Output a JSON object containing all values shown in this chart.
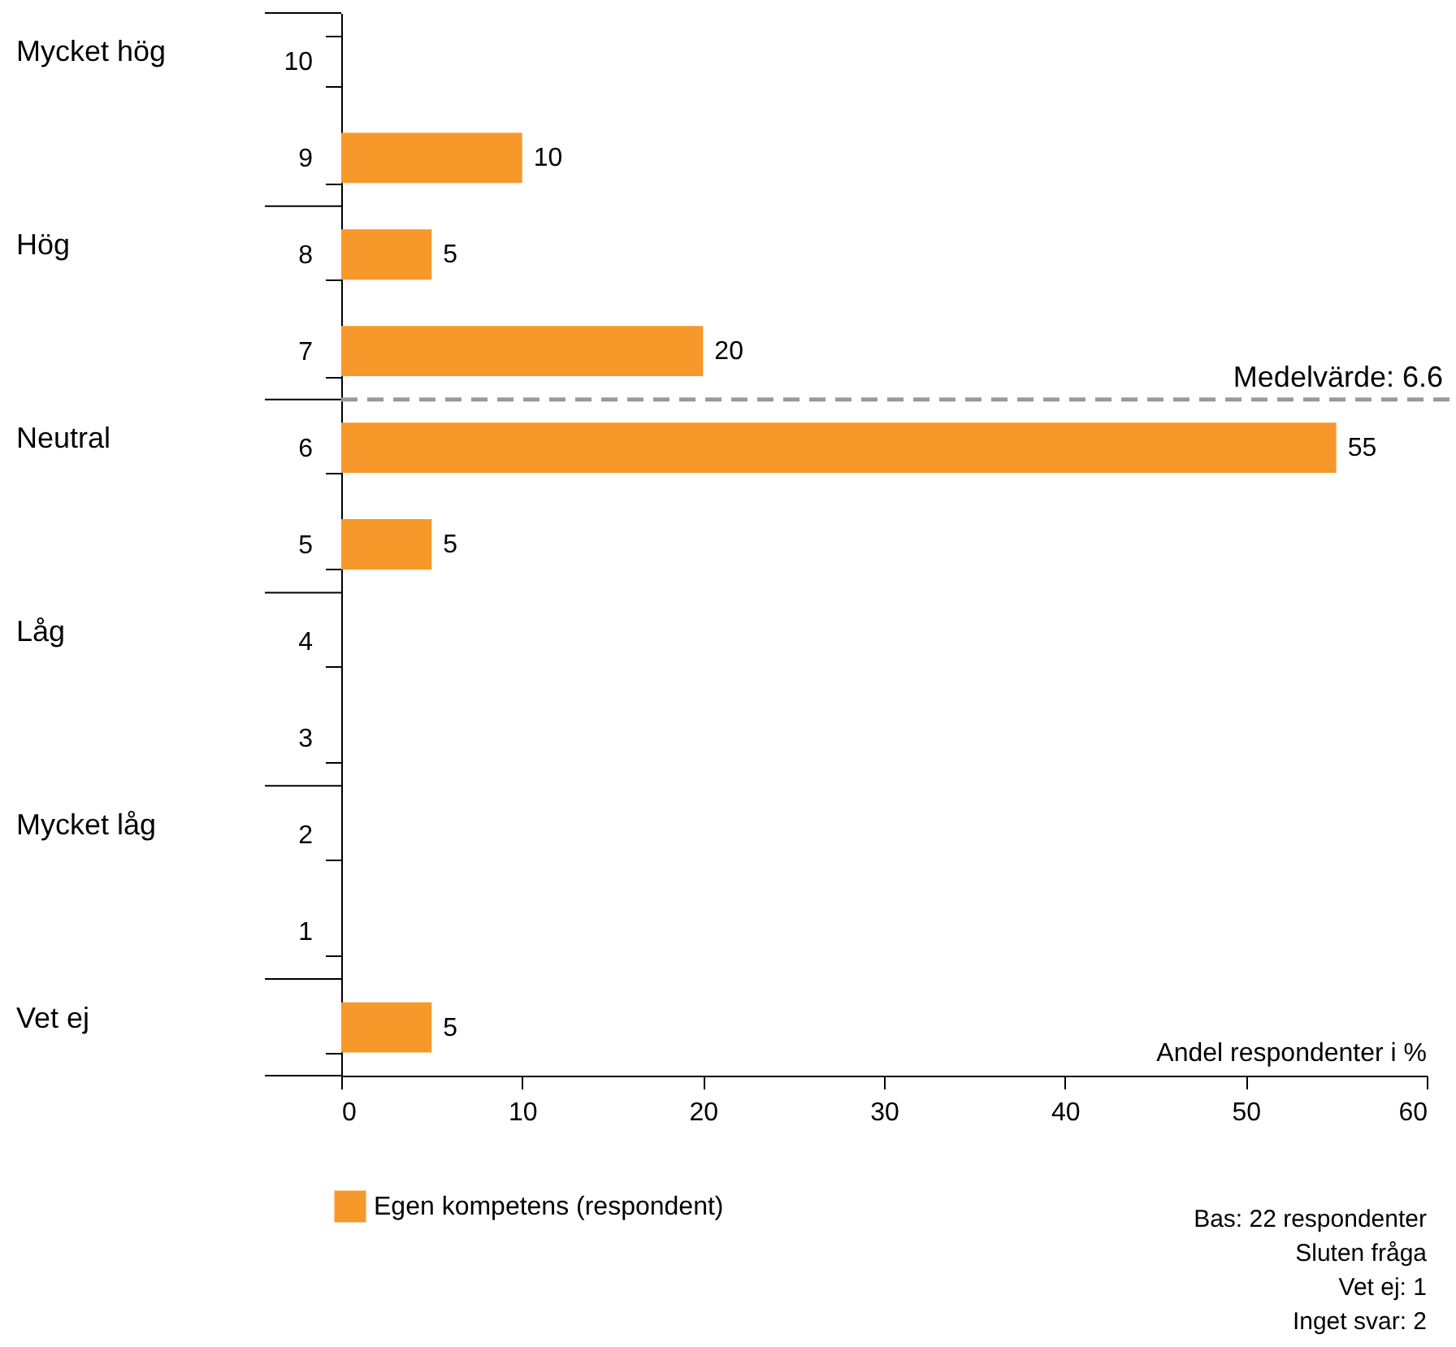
{
  "chart_data": {
    "type": "bar",
    "orientation": "horizontal",
    "xlabel": "Andel respondenter i %",
    "categories": [
      "10",
      "9",
      "8",
      "7",
      "6",
      "5",
      "4",
      "3",
      "2",
      "1",
      null
    ],
    "series": [
      {
        "name": "Egen kompetens (respondent)",
        "color": "#f7982a",
        "values": [
          null,
          10,
          5,
          20,
          55,
          5,
          null,
          null,
          null,
          null,
          5
        ]
      }
    ],
    "data_labels": true,
    "xlim": [
      0,
      60
    ],
    "xticks": [
      0,
      10,
      20,
      30,
      40,
      50,
      60
    ],
    "grid": false,
    "legend": "bottom left",
    "annotations": [
      "Mycket hög",
      "Hög",
      "Neutral",
      "Låg",
      "Mycket låg",
      "Vet ej",
      "Medelvärde: 6.6",
      "Bas: 22 respondenter",
      "Sluten fråga",
      "Vet ej: 1",
      "Inget svar: 2"
    ]
  }
}
